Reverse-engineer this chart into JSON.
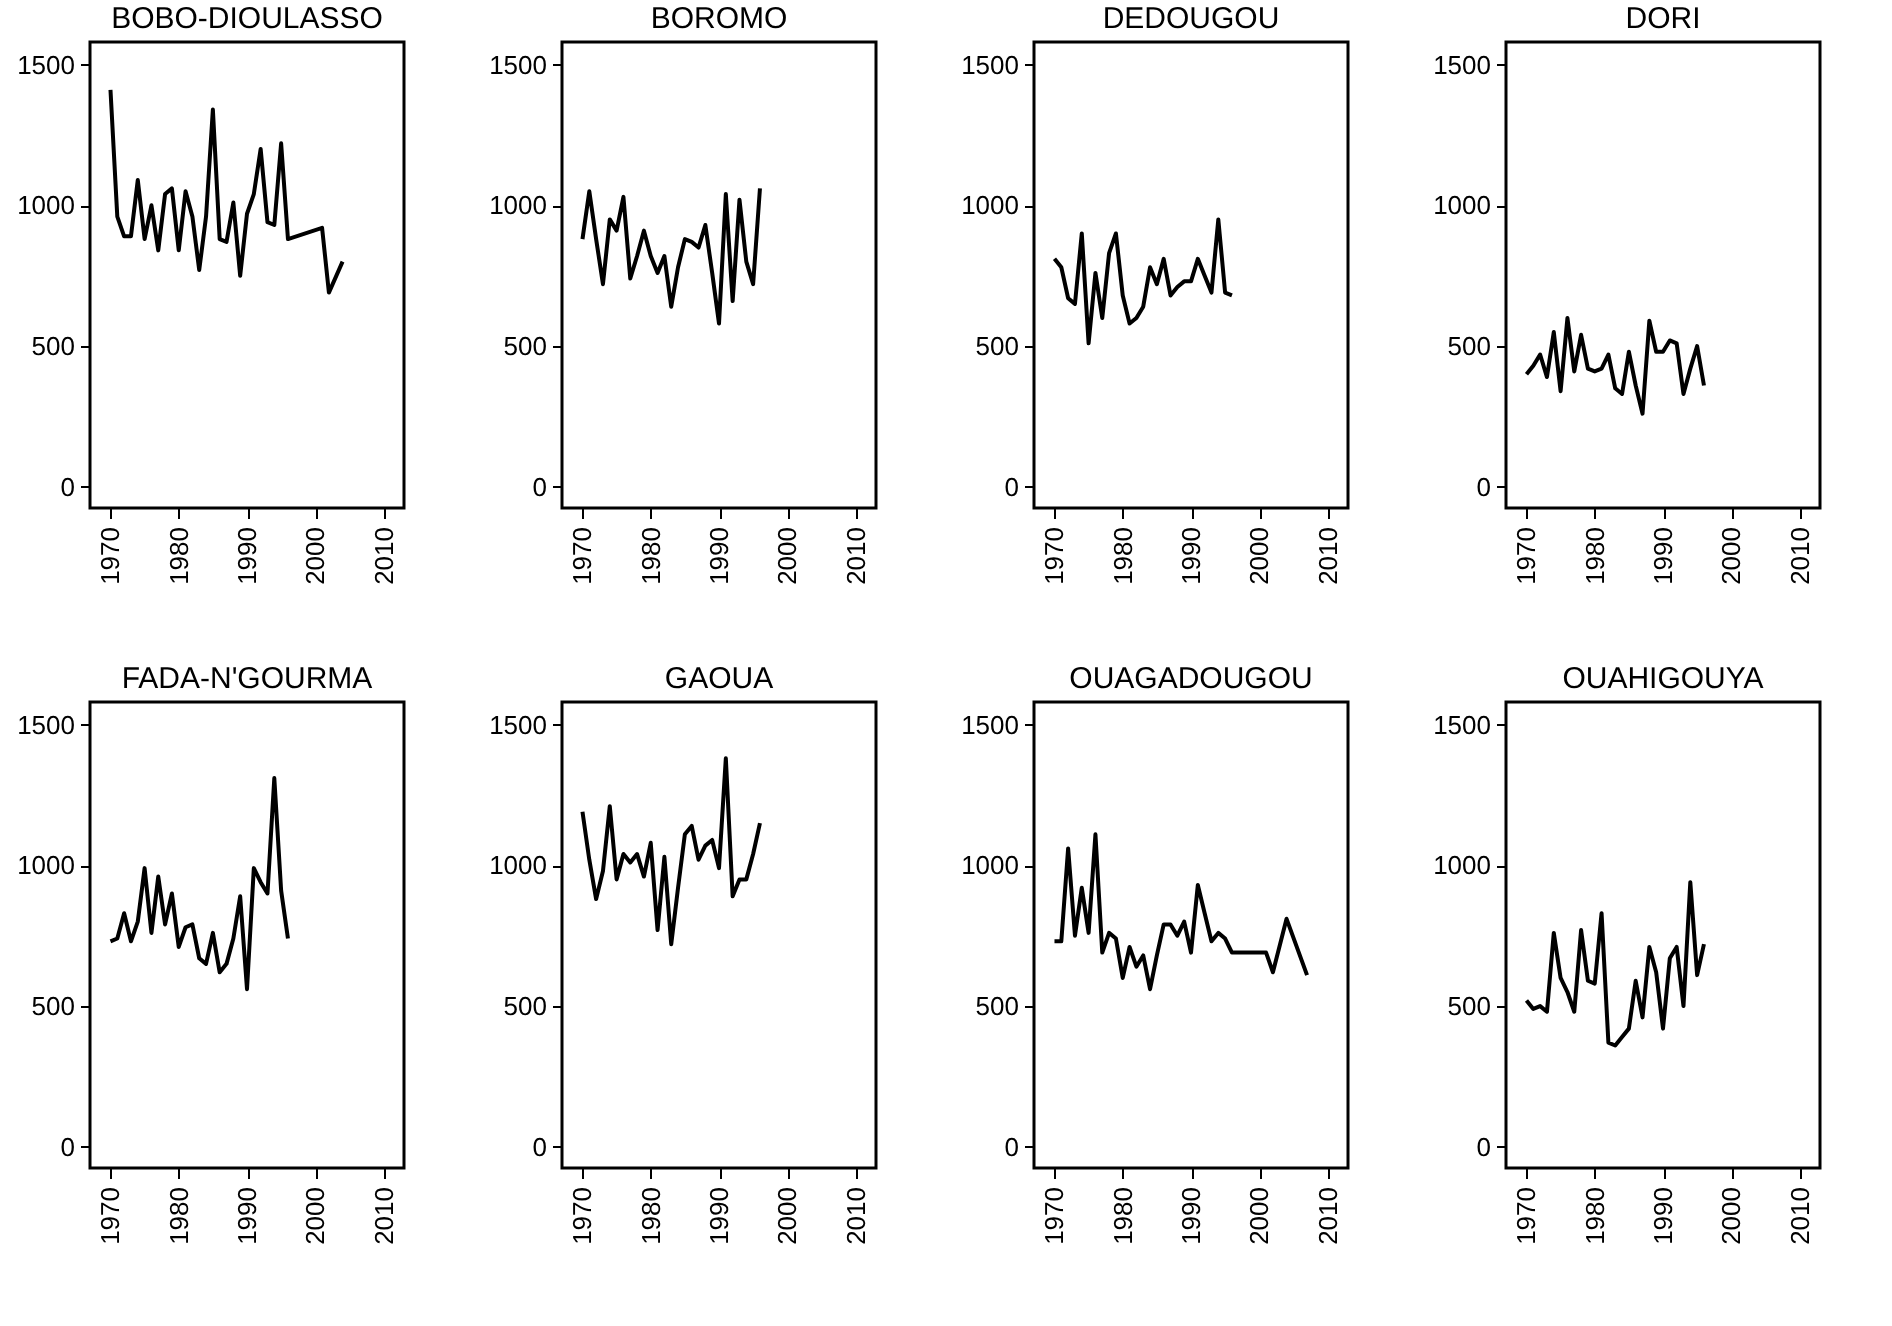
{
  "chart_data": [
    {
      "type": "line",
      "title": "BOBO-DIOULASSO",
      "x": [
        1970,
        1971,
        1972,
        1973,
        1974,
        1975,
        1976,
        1977,
        1978,
        1979,
        1980,
        1981,
        1982,
        1983,
        1984,
        1985,
        1986,
        1987,
        1988,
        1989,
        1990,
        1991,
        1992,
        1993,
        1994,
        1995,
        1996,
        2001,
        2002,
        2004
      ],
      "series": [
        {
          "color": "#000000",
          "values": [
            1410,
            960,
            890,
            890,
            1090,
            880,
            1000,
            840,
            1040,
            1060,
            840,
            1050,
            960,
            770,
            960,
            1340,
            880,
            870,
            1010,
            750,
            970,
            1040,
            1200,
            940,
            930,
            1220,
            880,
            920,
            690,
            800
          ]
        }
      ],
      "xlim": [
        1967,
        2013
      ],
      "ylim": [
        -75,
        1580
      ],
      "xticks": [
        1970,
        1980,
        1990,
        2000,
        2010
      ],
      "yticks": [
        0,
        500,
        1000,
        1500
      ]
    },
    {
      "type": "line",
      "title": "BOROMO",
      "x": [
        1970,
        1971,
        1972,
        1973,
        1974,
        1975,
        1976,
        1977,
        1978,
        1979,
        1980,
        1981,
        1982,
        1983,
        1984,
        1985,
        1986,
        1987,
        1988,
        1989,
        1990,
        1991,
        1992,
        1993,
        1994,
        1995,
        1996
      ],
      "series": [
        {
          "color": "#000000",
          "values": [
            880,
            1050,
            880,
            720,
            950,
            910,
            1030,
            740,
            820,
            910,
            820,
            760,
            820,
            640,
            780,
            880,
            870,
            850,
            930,
            760,
            580,
            1040,
            660,
            1020,
            800,
            720,
            1060
          ]
        }
      ],
      "xlim": [
        1967,
        2013
      ],
      "ylim": [
        -75,
        1580
      ],
      "xticks": [
        1970,
        1980,
        1990,
        2000,
        2010
      ],
      "yticks": [
        0,
        500,
        1000,
        1500
      ]
    },
    {
      "type": "line",
      "title": "DEDOUGOU",
      "x": [
        1970,
        1971,
        1972,
        1973,
        1974,
        1975,
        1976,
        1977,
        1978,
        1979,
        1980,
        1981,
        1982,
        1983,
        1984,
        1985,
        1986,
        1987,
        1988,
        1989,
        1990,
        1991,
        1992,
        1993,
        1994,
        1995,
        1996
      ],
      "series": [
        {
          "color": "#000000",
          "values": [
            810,
            780,
            670,
            650,
            900,
            510,
            760,
            600,
            830,
            900,
            680,
            580,
            600,
            640,
            780,
            720,
            810,
            680,
            710,
            730,
            730,
            810,
            750,
            690,
            950,
            690,
            680
          ]
        }
      ],
      "xlim": [
        1967,
        2013
      ],
      "ylim": [
        -75,
        1580
      ],
      "xticks": [
        1970,
        1980,
        1990,
        2000,
        2010
      ],
      "yticks": [
        0,
        500,
        1000,
        1500
      ]
    },
    {
      "type": "line",
      "title": "DORI",
      "x": [
        1970,
        1971,
        1972,
        1973,
        1974,
        1975,
        1976,
        1977,
        1978,
        1979,
        1980,
        1981,
        1982,
        1983,
        1984,
        1985,
        1986,
        1987,
        1988,
        1989,
        1990,
        1991,
        1992,
        1993,
        1994,
        1995,
        1996
      ],
      "series": [
        {
          "color": "#000000",
          "values": [
            400,
            430,
            470,
            390,
            550,
            340,
            600,
            410,
            540,
            420,
            410,
            420,
            470,
            350,
            330,
            480,
            360,
            260,
            590,
            480,
            480,
            520,
            510,
            330,
            420,
            500,
            360
          ]
        }
      ],
      "xlim": [
        1967,
        2013
      ],
      "ylim": [
        -75,
        1580
      ],
      "xticks": [
        1970,
        1980,
        1990,
        2000,
        2010
      ],
      "yticks": [
        0,
        500,
        1000,
        1500
      ]
    },
    {
      "type": "line",
      "title": "FADA-N'GOURMA",
      "x": [
        1970,
        1971,
        1972,
        1973,
        1974,
        1975,
        1976,
        1977,
        1978,
        1979,
        1980,
        1981,
        1982,
        1983,
        1984,
        1985,
        1986,
        1987,
        1988,
        1989,
        1990,
        1991,
        1992,
        1993,
        1994,
        1995,
        1996
      ],
      "series": [
        {
          "color": "#000000",
          "values": [
            730,
            740,
            830,
            730,
            800,
            990,
            760,
            960,
            790,
            900,
            710,
            780,
            790,
            670,
            650,
            760,
            620,
            650,
            740,
            890,
            560,
            990,
            940,
            900,
            1310,
            910,
            740
          ]
        }
      ],
      "xlim": [
        1967,
        2013
      ],
      "ylim": [
        -75,
        1580
      ],
      "xticks": [
        1970,
        1980,
        1990,
        2000,
        2010
      ],
      "yticks": [
        0,
        500,
        1000,
        1500
      ]
    },
    {
      "type": "line",
      "title": "GAOUA",
      "x": [
        1970,
        1971,
        1972,
        1973,
        1974,
        1975,
        1976,
        1977,
        1978,
        1979,
        1980,
        1981,
        1982,
        1983,
        1984,
        1985,
        1986,
        1987,
        1988,
        1989,
        1990,
        1991,
        1992,
        1993,
        1994,
        1995,
        1996
      ],
      "series": [
        {
          "color": "#000000",
          "values": [
            1190,
            1020,
            880,
            980,
            1210,
            950,
            1040,
            1010,
            1040,
            960,
            1080,
            770,
            1030,
            720,
            920,
            1110,
            1140,
            1020,
            1070,
            1090,
            990,
            1380,
            890,
            950,
            950,
            1040,
            1150
          ]
        }
      ],
      "xlim": [
        1967,
        2013
      ],
      "ylim": [
        -75,
        1580
      ],
      "xticks": [
        1970,
        1980,
        1990,
        2000,
        2010
      ],
      "yticks": [
        0,
        500,
        1000,
        1500
      ]
    },
    {
      "type": "line",
      "title": "OUAGADOUGOU",
      "x": [
        1970,
        1971,
        1972,
        1973,
        1974,
        1975,
        1976,
        1977,
        1978,
        1979,
        1980,
        1981,
        1982,
        1983,
        1984,
        1985,
        1986,
        1987,
        1988,
        1989,
        1990,
        1991,
        1992,
        1993,
        1994,
        1995,
        1996,
        2001,
        2002,
        2004,
        2007
      ],
      "series": [
        {
          "color": "#000000",
          "values": [
            730,
            730,
            1060,
            750,
            920,
            760,
            1110,
            690,
            760,
            740,
            600,
            710,
            640,
            680,
            560,
            680,
            790,
            790,
            750,
            800,
            690,
            930,
            830,
            730,
            760,
            740,
            690,
            690,
            620,
            810,
            610
          ]
        }
      ],
      "xlim": [
        1967,
        2013
      ],
      "ylim": [
        -75,
        1580
      ],
      "xticks": [
        1970,
        1980,
        1990,
        2000,
        2010
      ],
      "yticks": [
        0,
        500,
        1000,
        1500
      ]
    },
    {
      "type": "line",
      "title": "OUAHIGOUYA",
      "x": [
        1970,
        1971,
        1972,
        1973,
        1974,
        1975,
        1976,
        1977,
        1978,
        1979,
        1980,
        1981,
        1982,
        1983,
        1984,
        1985,
        1986,
        1987,
        1988,
        1989,
        1990,
        1991,
        1992,
        1993,
        1994,
        1995,
        1996
      ],
      "series": [
        {
          "color": "#000000",
          "values": [
            520,
            490,
            500,
            480,
            760,
            600,
            550,
            480,
            770,
            590,
            580,
            830,
            370,
            360,
            390,
            420,
            590,
            460,
            710,
            620,
            420,
            670,
            710,
            500,
            940,
            610,
            720
          ]
        }
      ],
      "xlim": [
        1967,
        2013
      ],
      "ylim": [
        -75,
        1580
      ],
      "xticks": [
        1970,
        1980,
        1990,
        2000,
        2010
      ],
      "yticks": [
        0,
        500,
        1000,
        1500
      ]
    }
  ]
}
